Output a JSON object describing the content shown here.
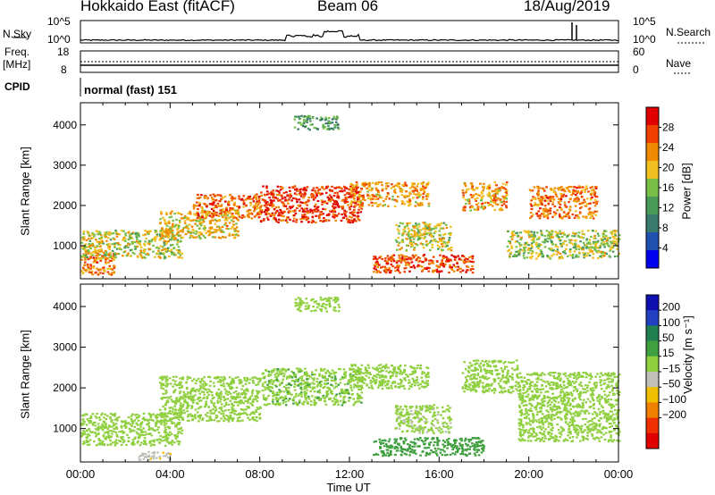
{
  "header": {
    "station": "Hokkaido East (fitACF)",
    "beam": "Beam 06",
    "date": "18/Aug/2019"
  },
  "top_panels": {
    "nsky_label": "N.Sky",
    "nsearch_label": "N.Search",
    "noise_ticks": [
      "10^5",
      "10^0"
    ],
    "freq_label_line1": "Freq.",
    "freq_label_line2": "[MHz]",
    "freq_ticks": [
      "18",
      "8"
    ],
    "nave_label": "Nave",
    "nave_ticks": [
      "60",
      "0"
    ],
    "cpid_label": "CPID",
    "cpid_value": "normal (fast) 151"
  },
  "colors": {
    "power_scale": [
      "#0000ee",
      "#2050b0",
      "#3a7a6a",
      "#4a9a5a",
      "#78c048",
      "#f0c020",
      "#f08a00",
      "#f04000",
      "#e00000"
    ],
    "velocity_scale": [
      "#1010b0",
      "#2040c0",
      "#208050",
      "#40a040",
      "#90d040",
      "#c0c0b8",
      "#f0c000",
      "#f08000",
      "#f03000",
      "#e00000"
    ]
  },
  "chart_data": [
    {
      "type": "heatmap",
      "title": "Power",
      "ylabel": "Slant Range [km]",
      "colorbar_label": "Power [dB]",
      "colorbar_ticks": [
        4,
        8,
        12,
        16,
        20,
        24,
        28
      ],
      "colorbar_range": [
        0,
        32
      ],
      "ylim": [
        180,
        4550
      ],
      "y_ticks": [
        1000,
        2000,
        3000,
        4000
      ],
      "xlim": [
        0,
        24
      ],
      "regions": [
        {
          "t0": 0.0,
          "t1": 1.5,
          "r0": 300,
          "r1": 900,
          "value": 24
        },
        {
          "t0": 0.0,
          "t1": 4.5,
          "r0": 700,
          "r1": 1400,
          "value": 18
        },
        {
          "t0": 3.5,
          "t1": 7.0,
          "r0": 1200,
          "r1": 1900,
          "value": 20
        },
        {
          "t0": 5.0,
          "t1": 8.0,
          "r0": 1700,
          "r1": 2300,
          "value": 25
        },
        {
          "t0": 8.0,
          "t1": 12.5,
          "r0": 1600,
          "r1": 2500,
          "value": 28
        },
        {
          "t0": 12.0,
          "t1": 15.5,
          "r0": 2000,
          "r1": 2600,
          "value": 22
        },
        {
          "t0": 9.5,
          "t1": 11.5,
          "r0": 3900,
          "r1": 4250,
          "value": 12
        },
        {
          "t0": 13.0,
          "t1": 17.5,
          "r0": 350,
          "r1": 800,
          "value": 27
        },
        {
          "t0": 14.0,
          "t1": 16.5,
          "r0": 900,
          "r1": 1600,
          "value": 18
        },
        {
          "t0": 17.0,
          "t1": 19.0,
          "r0": 1900,
          "r1": 2600,
          "value": 22
        },
        {
          "t0": 20.0,
          "t1": 23.0,
          "r0": 1700,
          "r1": 2500,
          "value": 24
        },
        {
          "t0": 19.0,
          "t1": 24.0,
          "r0": 700,
          "r1": 1400,
          "value": 17
        }
      ]
    },
    {
      "type": "heatmap",
      "title": "Velocity",
      "ylabel": "Slant Range [km]",
      "colorbar_label": "Velocity [m s⁻¹]",
      "colorbar_ticks": [
        200,
        100,
        50,
        15,
        -15,
        -50,
        -100,
        -200
      ],
      "ylim": [
        180,
        4550
      ],
      "y_ticks": [
        1000,
        2000,
        3000,
        4000
      ],
      "xlim": [
        0,
        24
      ],
      "x_ticks": [
        "00:00",
        "04:00",
        "08:00",
        "12:00",
        "16:00",
        "20:00",
        "00:00"
      ],
      "xlabel": "Time UT",
      "regions": [
        {
          "t0": 0.0,
          "t1": 4.5,
          "r0": 600,
          "r1": 1400,
          "value": 0
        },
        {
          "t0": 3.5,
          "t1": 8.0,
          "r0": 1200,
          "r1": 2300,
          "value": 0
        },
        {
          "t0": 8.0,
          "t1": 12.5,
          "r0": 1600,
          "r1": 2500,
          "value": 5
        },
        {
          "t0": 12.0,
          "t1": 15.5,
          "r0": 2000,
          "r1": 2600,
          "value": 0
        },
        {
          "t0": 9.5,
          "t1": 11.5,
          "r0": 3900,
          "r1": 4250,
          "value": 0
        },
        {
          "t0": 13.0,
          "t1": 18.0,
          "r0": 350,
          "r1": 800,
          "value": 30
        },
        {
          "t0": 14.0,
          "t1": 16.5,
          "r0": 900,
          "r1": 1600,
          "value": -5
        },
        {
          "t0": 17.0,
          "t1": 19.5,
          "r0": 1900,
          "r1": 2700,
          "value": 0
        },
        {
          "t0": 19.5,
          "t1": 24.0,
          "r0": 700,
          "r1": 2400,
          "value": 0
        },
        {
          "t0": 2.5,
          "t1": 4.0,
          "r0": 250,
          "r1": 450,
          "value": -40
        }
      ]
    }
  ]
}
